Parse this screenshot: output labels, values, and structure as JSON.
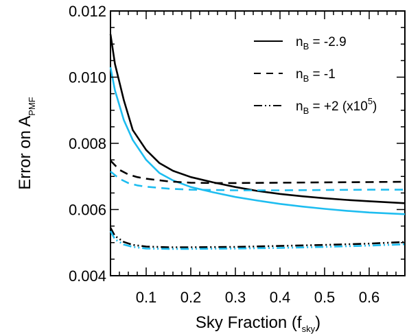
{
  "chart_data": {
    "type": "line",
    "xlabel": "Sky Fraction (f",
    "xlabel_sub": "sky",
    "xlabel_end": ")",
    "ylabel": "Error on A",
    "ylabel_sub": "PMF",
    "xlim": [
      0.02,
      0.68
    ],
    "ylim": [
      0.004,
      0.012
    ],
    "xticks": [
      0.1,
      0.2,
      0.3,
      0.4,
      0.5,
      0.6
    ],
    "xtick_labels": [
      "0.1",
      "0.2",
      "0.3",
      "0.4",
      "0.5",
      "0.6"
    ],
    "yticks": [
      0.004,
      0.006,
      0.008,
      0.01,
      0.012
    ],
    "ytick_labels": [
      "0.004",
      "0.006",
      "0.008",
      "0.010",
      "0.012"
    ],
    "x_minor_step": 0.02,
    "y_minor_step": 0.0005,
    "grid": false,
    "legend_position": "top-right",
    "legend": [
      {
        "label": "n",
        "sub": "B",
        "rest": " = -2.9",
        "sup": "",
        "tail": "",
        "style": "solid"
      },
      {
        "label": "n",
        "sub": "B",
        "rest": " = -1",
        "sup": "",
        "tail": "",
        "style": "dashed"
      },
      {
        "label": "n",
        "sub": "B",
        "rest": " = +2 (x10",
        "sup": "5",
        "tail": ")",
        "style": "dashdotdot"
      }
    ],
    "colors": {
      "black": "#000000",
      "cyan": "#1ebdf0"
    },
    "series": [
      {
        "color": "black",
        "style": "solid",
        "x": [
          0.02,
          0.03,
          0.05,
          0.07,
          0.1,
          0.13,
          0.16,
          0.2,
          0.25,
          0.3,
          0.35,
          0.4,
          0.45,
          0.5,
          0.55,
          0.6,
          0.68
        ],
        "y": [
          0.0113,
          0.0104,
          0.0093,
          0.0084,
          0.0078,
          0.0074,
          0.00717,
          0.00698,
          0.00682,
          0.00668,
          0.00656,
          0.00647,
          0.0064,
          0.00634,
          0.00629,
          0.00625,
          0.00619
        ]
      },
      {
        "color": "cyan",
        "style": "solid",
        "x": [
          0.02,
          0.03,
          0.05,
          0.07,
          0.1,
          0.13,
          0.16,
          0.2,
          0.25,
          0.3,
          0.35,
          0.4,
          0.45,
          0.5,
          0.55,
          0.6,
          0.68
        ],
        "y": [
          0.0103,
          0.0096,
          0.0087,
          0.0081,
          0.0075,
          0.0071,
          0.00688,
          0.00668,
          0.00652,
          0.00638,
          0.00627,
          0.00617,
          0.00609,
          0.00602,
          0.00596,
          0.00591,
          0.00586
        ]
      },
      {
        "color": "black",
        "style": "dashed",
        "x": [
          0.02,
          0.04,
          0.06,
          0.08,
          0.1,
          0.15,
          0.2,
          0.25,
          0.3,
          0.4,
          0.5,
          0.6,
          0.68
        ],
        "y": [
          0.00748,
          0.0072,
          0.00706,
          0.00698,
          0.00693,
          0.00685,
          0.00681,
          0.0068,
          0.0068,
          0.00681,
          0.00682,
          0.00683,
          0.00684
        ]
      },
      {
        "color": "cyan",
        "style": "dashed",
        "x": [
          0.02,
          0.04,
          0.06,
          0.08,
          0.1,
          0.15,
          0.2,
          0.25,
          0.3,
          0.4,
          0.5,
          0.6,
          0.68
        ],
        "y": [
          0.00715,
          0.00693,
          0.0068,
          0.00673,
          0.00669,
          0.00663,
          0.0066,
          0.00659,
          0.00658,
          0.00658,
          0.00659,
          0.0066,
          0.0066
        ]
      },
      {
        "color": "black",
        "style": "dashdotdot",
        "x": [
          0.02,
          0.03,
          0.05,
          0.07,
          0.1,
          0.15,
          0.2,
          0.3,
          0.4,
          0.5,
          0.6,
          0.68
        ],
        "y": [
          0.00545,
          0.0052,
          0.00502,
          0.00493,
          0.00488,
          0.00486,
          0.00486,
          0.00487,
          0.0049,
          0.00493,
          0.00497,
          0.00502
        ]
      },
      {
        "color": "cyan",
        "style": "dashdotdot",
        "x": [
          0.02,
          0.03,
          0.05,
          0.07,
          0.1,
          0.15,
          0.2,
          0.3,
          0.4,
          0.5,
          0.6,
          0.68
        ],
        "y": [
          0.00535,
          0.0051,
          0.00494,
          0.00487,
          0.00482,
          0.00481,
          0.00481,
          0.00482,
          0.00484,
          0.00487,
          0.00491,
          0.00495
        ]
      }
    ]
  }
}
